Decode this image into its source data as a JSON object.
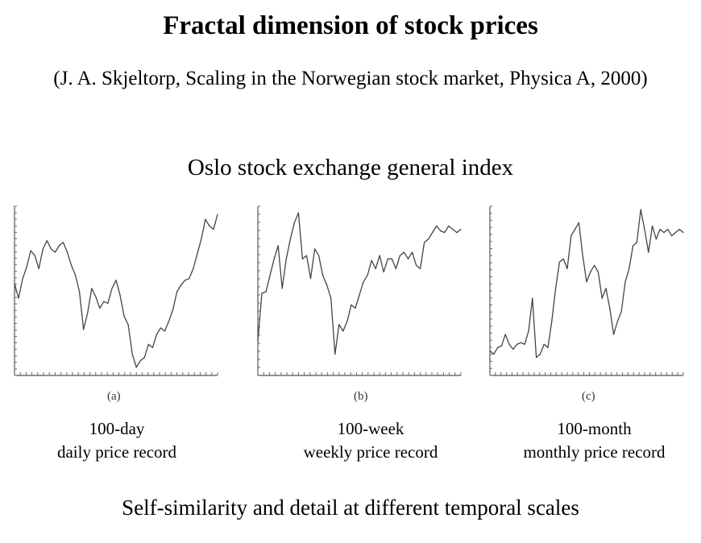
{
  "title": "Fractal dimension of stock prices",
  "citation": "(J. A. Skjeltorp, Scaling in the Norwegian stock market, Physica A, 2000)",
  "subtitle": "Oslo stock exchange general index",
  "footer": "Self-similarity and detail at different temporal scales",
  "chart_data": [
    {
      "type": "line",
      "panel_label": "(a)",
      "caption_line1": "100-day",
      "caption_line2": "daily price record",
      "xlabel": "",
      "ylabel": "",
      "xlim": [
        0,
        100
      ],
      "ylim": [
        0,
        1
      ],
      "y_tick_count": 27,
      "x_tick_count": 36,
      "x": [
        0,
        2,
        4,
        6,
        8,
        10,
        12,
        14,
        16,
        18,
        20,
        22,
        24,
        26,
        28,
        30,
        32,
        34,
        36,
        38,
        40,
        42,
        44,
        46,
        48,
        50,
        52,
        54,
        56,
        58,
        60,
        62,
        64,
        66,
        68,
        70,
        72,
        74,
        76,
        78,
        80,
        82,
        84,
        86,
        88,
        90,
        92,
        94,
        96,
        98,
        100
      ],
      "values": [
        0.53,
        0.44,
        0.56,
        0.63,
        0.73,
        0.7,
        0.62,
        0.74,
        0.79,
        0.74,
        0.72,
        0.76,
        0.78,
        0.72,
        0.64,
        0.58,
        0.48,
        0.25,
        0.35,
        0.5,
        0.45,
        0.38,
        0.42,
        0.41,
        0.5,
        0.55,
        0.46,
        0.33,
        0.28,
        0.1,
        0.02,
        0.06,
        0.08,
        0.16,
        0.14,
        0.22,
        0.26,
        0.24,
        0.3,
        0.37,
        0.48,
        0.52,
        0.55,
        0.56,
        0.62,
        0.71,
        0.8,
        0.92,
        0.88,
        0.86,
        0.95
      ]
    },
    {
      "type": "line",
      "panel_label": "(b)",
      "caption_line1": "100-week",
      "caption_line2": "weekly price record",
      "xlabel": "",
      "ylabel": "",
      "xlim": [
        0,
        100
      ],
      "ylim": [
        0,
        1
      ],
      "y_tick_count": 22,
      "x_tick_count": 36,
      "x": [
        0,
        2,
        4,
        6,
        8,
        10,
        12,
        14,
        16,
        18,
        20,
        22,
        24,
        26,
        28,
        30,
        32,
        34,
        36,
        38,
        40,
        42,
        44,
        46,
        48,
        50,
        52,
        54,
        56,
        58,
        60,
        62,
        64,
        66,
        68,
        70,
        72,
        74,
        76,
        78,
        80,
        82,
        84,
        86,
        88,
        90,
        92,
        94,
        96,
        98,
        100
      ],
      "values": [
        0.18,
        0.47,
        0.48,
        0.58,
        0.68,
        0.76,
        0.5,
        0.68,
        0.8,
        0.9,
        0.96,
        0.68,
        0.7,
        0.56,
        0.74,
        0.7,
        0.58,
        0.52,
        0.44,
        0.1,
        0.28,
        0.24,
        0.3,
        0.4,
        0.38,
        0.46,
        0.54,
        0.58,
        0.67,
        0.62,
        0.7,
        0.6,
        0.68,
        0.68,
        0.62,
        0.7,
        0.72,
        0.68,
        0.72,
        0.64,
        0.62,
        0.78,
        0.8,
        0.84,
        0.88,
        0.85,
        0.84,
        0.88,
        0.86,
        0.84,
        0.86
      ]
    },
    {
      "type": "line",
      "panel_label": "(c)",
      "caption_line1": "100-month",
      "caption_line2": "monthly price record",
      "xlabel": "",
      "ylabel": "",
      "xlim": [
        0,
        100
      ],
      "ylim": [
        0,
        1
      ],
      "y_tick_count": 25,
      "x_tick_count": 36,
      "x": [
        0,
        2,
        4,
        6,
        8,
        10,
        12,
        14,
        16,
        18,
        20,
        22,
        24,
        26,
        28,
        30,
        32,
        34,
        36,
        38,
        40,
        42,
        44,
        46,
        48,
        50,
        52,
        54,
        56,
        58,
        60,
        62,
        64,
        66,
        68,
        70,
        72,
        74,
        76,
        78,
        80,
        82,
        84,
        86,
        88,
        90,
        92,
        94,
        96,
        98,
        100
      ],
      "values": [
        0.12,
        0.1,
        0.14,
        0.15,
        0.22,
        0.16,
        0.13,
        0.16,
        0.17,
        0.16,
        0.24,
        0.44,
        0.08,
        0.1,
        0.16,
        0.14,
        0.3,
        0.5,
        0.66,
        0.68,
        0.62,
        0.82,
        0.86,
        0.9,
        0.7,
        0.54,
        0.6,
        0.64,
        0.6,
        0.44,
        0.5,
        0.38,
        0.22,
        0.3,
        0.36,
        0.54,
        0.62,
        0.76,
        0.78,
        0.98,
        0.86,
        0.72,
        0.88,
        0.8,
        0.86,
        0.84,
        0.86,
        0.82,
        0.84,
        0.86,
        0.84
      ]
    }
  ]
}
